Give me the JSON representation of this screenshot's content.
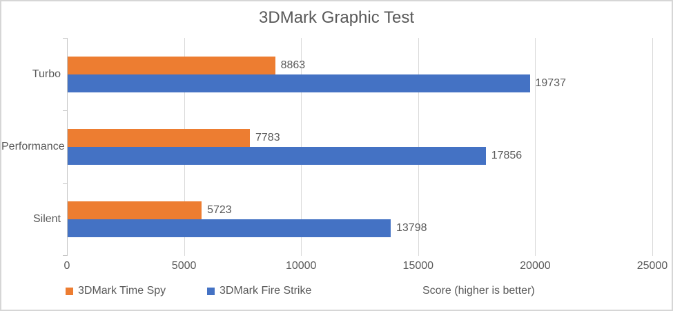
{
  "chart_data": {
    "type": "bar",
    "orientation": "horizontal",
    "title": "3DMark Graphic Test",
    "categories": [
      "Turbo",
      "Performance",
      "Silent"
    ],
    "series": [
      {
        "name": "3DMark Time Spy",
        "color": "#ED7D31",
        "values": [
          8863,
          7783,
          5723
        ]
      },
      {
        "name": "3DMark Fire Strike",
        "color": "#4472C4",
        "values": [
          19737,
          17856,
          13798
        ]
      }
    ],
    "x_ticks": [
      0,
      5000,
      10000,
      15000,
      20000,
      25000
    ],
    "xlim": [
      0,
      25000
    ],
    "xlabel": "Score (higher is better)",
    "ylabel": "",
    "grid": true,
    "data_labels": true,
    "legend_position": "bottom-left"
  },
  "colors": {
    "text": "#595959",
    "gridline": "#D9D9D9",
    "axis_line": "#C6C6C6",
    "background": "#FFFFFF",
    "frame_border": "#D6D6D6"
  }
}
